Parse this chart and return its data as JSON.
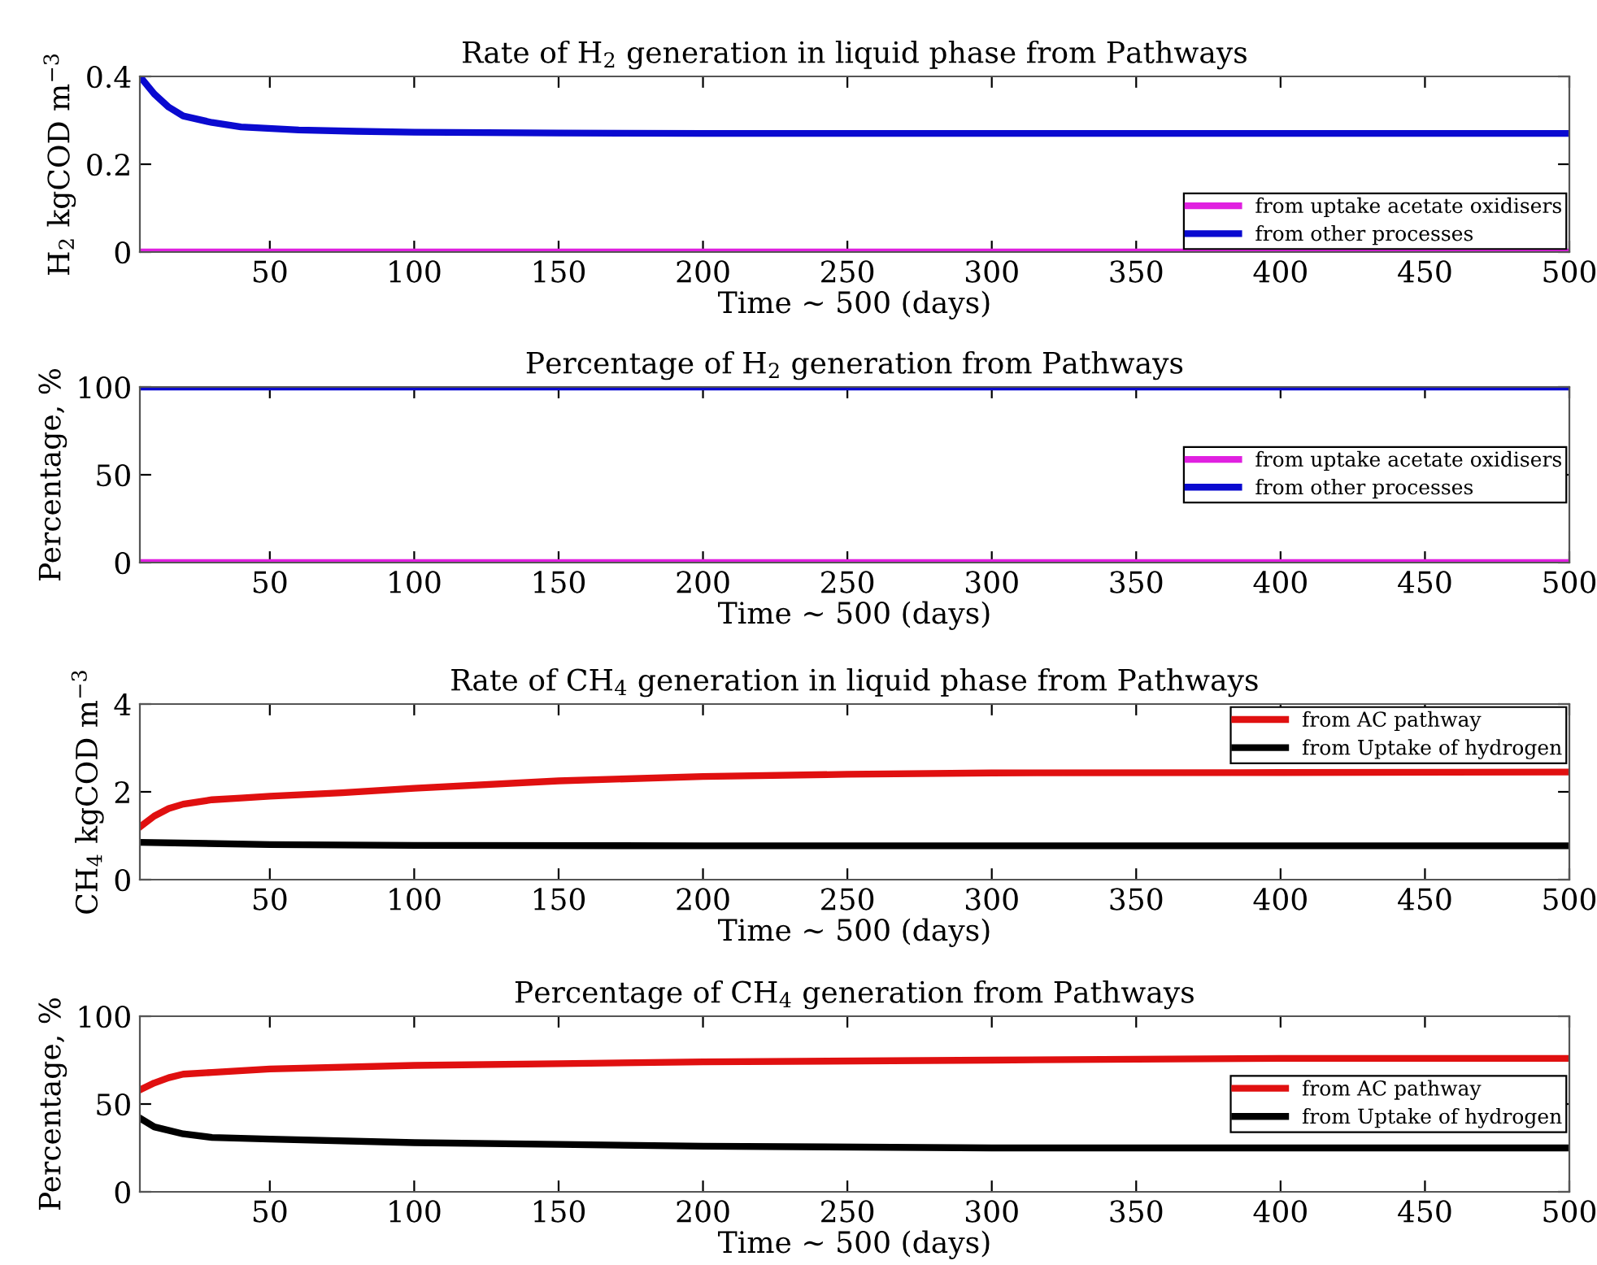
{
  "chart_data": [
    {
      "type": "line",
      "title": "Rate of H$_{2}$ generation in liquid phase from Pathways",
      "xlabel": "Time ~ 500 (days)",
      "ylabel": "H$_{2}$ kgCOD m$^{−3}$",
      "xlim": [
        5,
        500
      ],
      "ylim": [
        0,
        0.4
      ],
      "xticks": [
        50,
        100,
        150,
        200,
        250,
        300,
        350,
        400,
        450,
        500
      ],
      "yticks": [
        0,
        0.2,
        0.4
      ],
      "grid": false,
      "legend": "lower right",
      "marker": "none",
      "line_style": "solid",
      "series": [
        {
          "name": "from uptake acetate oxidisers",
          "color": "#e020e0",
          "x": [
            5,
            100,
            200,
            300,
            400,
            500
          ],
          "values": [
            0,
            0,
            0,
            0,
            0,
            0
          ]
        },
        {
          "name": "from other processes",
          "color": "#0a0ad0",
          "x": [
            5,
            10,
            15,
            20,
            30,
            40,
            60,
            80,
            100,
            150,
            200,
            300,
            400,
            500
          ],
          "values": [
            0.4,
            0.36,
            0.33,
            0.31,
            0.295,
            0.285,
            0.278,
            0.275,
            0.273,
            0.271,
            0.27,
            0.27,
            0.27,
            0.27
          ]
        }
      ]
    },
    {
      "type": "line",
      "title": "Percentage of H$_{2}$ generation from Pathways",
      "xlabel": "Time ~ 500 (days)",
      "ylabel": "Percentage, %",
      "xlim": [
        5,
        500
      ],
      "ylim": [
        0,
        100
      ],
      "xticks": [
        50,
        100,
        150,
        200,
        250,
        300,
        350,
        400,
        450,
        500
      ],
      "yticks": [
        0,
        50,
        100
      ],
      "grid": false,
      "legend": "center right",
      "marker": "none",
      "line_style": "solid",
      "series": [
        {
          "name": "from uptake acetate oxidisers",
          "color": "#e020e0",
          "x": [
            5,
            100,
            200,
            300,
            400,
            500
          ],
          "values": [
            0,
            0,
            0,
            0,
            0,
            0
          ]
        },
        {
          "name": "from other processes",
          "color": "#0a0ad0",
          "x": [
            5,
            100,
            200,
            300,
            400,
            500
          ],
          "values": [
            100,
            100,
            100,
            100,
            100,
            100
          ]
        }
      ]
    },
    {
      "type": "line",
      "title": "Rate of CH$_{4}$ generation in liquid phase from Pathways",
      "xlabel": "Time ~ 500 (days)",
      "ylabel": "CH$_{4}$ kgCOD m$^{−3}$",
      "xlim": [
        5,
        500
      ],
      "ylim": [
        0,
        4
      ],
      "xticks": [
        50,
        100,
        150,
        200,
        250,
        300,
        350,
        400,
        450,
        500
      ],
      "yticks": [
        0,
        2,
        4
      ],
      "grid": false,
      "legend": "upper right",
      "marker": "none",
      "line_style": "solid",
      "series": [
        {
          "name": "from AC pathway",
          "color": "#e01010",
          "x": [
            5,
            10,
            15,
            20,
            30,
            40,
            50,
            75,
            100,
            150,
            200,
            250,
            300,
            400,
            500
          ],
          "values": [
            1.2,
            1.45,
            1.62,
            1.72,
            1.82,
            1.86,
            1.9,
            1.98,
            2.08,
            2.25,
            2.35,
            2.4,
            2.43,
            2.44,
            2.45
          ]
        },
        {
          "name": "from Uptake of hydrogen",
          "color": "#000000",
          "x": [
            5,
            50,
            100,
            200,
            300,
            400,
            500
          ],
          "values": [
            0.85,
            0.8,
            0.78,
            0.77,
            0.77,
            0.77,
            0.77
          ]
        }
      ]
    },
    {
      "type": "line",
      "title": "Percentage of CH$_{4}$ generation from Pathways",
      "xlabel": "Time ~ 500 (days)",
      "ylabel": "Percentage, %",
      "xlim": [
        5,
        500
      ],
      "ylim": [
        0,
        100
      ],
      "xticks": [
        50,
        100,
        150,
        200,
        250,
        300,
        350,
        400,
        450,
        500
      ],
      "yticks": [
        0,
        50,
        100
      ],
      "grid": false,
      "legend": "center right",
      "marker": "none",
      "line_style": "solid",
      "series": [
        {
          "name": "from AC pathway",
          "color": "#e01010",
          "x": [
            5,
            10,
            15,
            20,
            30,
            50,
            100,
            150,
            200,
            300,
            400,
            500
          ],
          "values": [
            58,
            62,
            65,
            67,
            68,
            70,
            72,
            73,
            74,
            75,
            76,
            76
          ]
        },
        {
          "name": "from Uptake of hydrogen",
          "color": "#000000",
          "x": [
            5,
            10,
            20,
            30,
            50,
            100,
            150,
            200,
            300,
            400,
            500
          ],
          "values": [
            42,
            37,
            33,
            31,
            30,
            28,
            27,
            26,
            25,
            25,
            25
          ]
        }
      ]
    }
  ]
}
